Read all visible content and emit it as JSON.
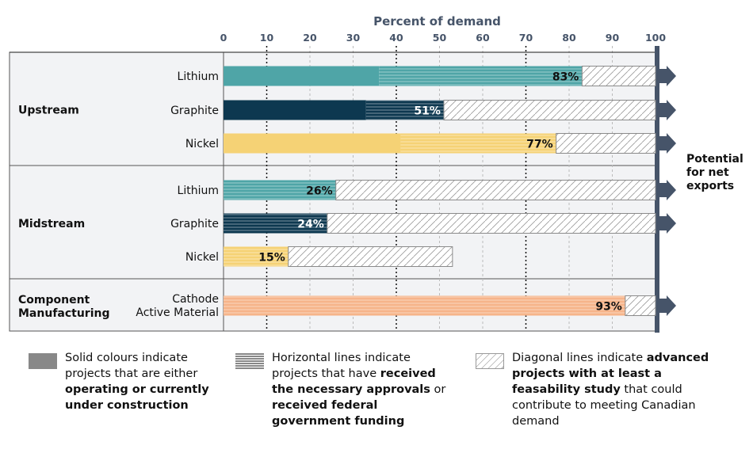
{
  "chart_data": {
    "type": "bar",
    "orientation": "horizontal",
    "stacked": true,
    "title": "",
    "xlabel": "Percent of demand",
    "ylabel": "",
    "xlim": [
      0,
      100
    ],
    "xticks": [
      "0",
      "10",
      "20",
      "30",
      "40",
      "50",
      "60",
      "70",
      "80",
      "90",
      "100"
    ],
    "grid": true,
    "groups": [
      {
        "name": "Upstream",
        "rows": [
          {
            "label": "Lithium",
            "material": "lithium",
            "solid": 36,
            "horizontal": 47,
            "diagonal": 17,
            "total_label": "83%",
            "arrow": true
          },
          {
            "label": "Graphite",
            "material": "graphite",
            "solid": 33,
            "horizontal": 18,
            "diagonal": 49,
            "total_label": "51%",
            "arrow": true
          },
          {
            "label": "Nickel",
            "material": "nickel",
            "solid": 41,
            "horizontal": 36,
            "diagonal": 23,
            "total_label": "77%",
            "arrow": true
          }
        ]
      },
      {
        "name": "Midstream",
        "rows": [
          {
            "label": "Lithium",
            "material": "lithium",
            "solid": 0,
            "horizontal": 26,
            "diagonal": 74,
            "total_label": "26%",
            "arrow": true
          },
          {
            "label": "Graphite",
            "material": "graphite",
            "solid": 0,
            "horizontal": 24,
            "diagonal": 76,
            "total_label": "24%",
            "arrow": true
          },
          {
            "label": "Nickel",
            "material": "nickel",
            "solid": 0,
            "horizontal": 15,
            "diagonal": 38,
            "total_label": "15%",
            "arrow": false
          }
        ]
      },
      {
        "name": "Component Manufacturing",
        "rows": [
          {
            "label": "Cathode Active Material",
            "material": "cam",
            "solid": 0,
            "horizontal": 93,
            "diagonal": 7,
            "total_label": "93%",
            "arrow": true
          }
        ]
      }
    ],
    "annotation": "Potential for net exports",
    "legend": [
      {
        "type": "solid",
        "text_parts": [
          [
            "Solid colours indicate projects that are either ",
            false
          ],
          [
            "operating or currently under construction",
            true
          ]
        ]
      },
      {
        "type": "horizontal",
        "text_parts": [
          [
            "Horizontal lines indicate projects that have ",
            false
          ],
          [
            "received the necessary approvals",
            true
          ],
          [
            " or ",
            false
          ],
          [
            "received federal government funding",
            true
          ]
        ]
      },
      {
        "type": "diagonal",
        "text_parts": [
          [
            "Diagonal lines indicate ",
            false
          ],
          [
            "advanced projects with at least a feasability study",
            true
          ],
          [
            " that could contribute to meeting Canadian demand",
            false
          ]
        ]
      }
    ],
    "legend_placement": "bottom"
  },
  "colors": {
    "lithium": "#4fa5a7",
    "graphite": "#0d3850",
    "nickel": "#f5d275",
    "cam": "#f6b48a",
    "axis": "#465469",
    "panel_bg": "#f2f3f5",
    "legend_swatch": "#888888"
  }
}
